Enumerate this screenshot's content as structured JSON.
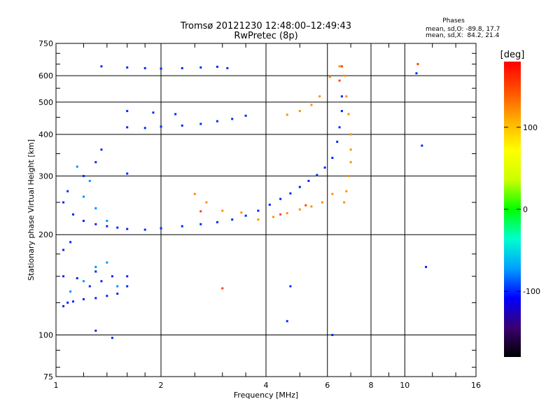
{
  "header": {
    "title_line1": "Tromsø 20121230 12:48:00–12:49:43",
    "title_line2": "RwPretec (8p)",
    "stats_title": "Phases",
    "stats_line1": "mean, sd,O: -89.8, 17.7",
    "stats_line2": "mean, sd,X:  84.2, 21.4"
  },
  "colorbar": {
    "unit_label": "[deg]",
    "tick_labels": [
      "100",
      "0",
      "-100"
    ],
    "tick_values": [
      100,
      0,
      -100
    ],
    "range": [
      -180,
      180
    ],
    "colors": [
      "#000000",
      "#3a0070",
      "#0000ff",
      "#00a0ff",
      "#00ffcc",
      "#00ff00",
      "#ccff00",
      "#ffff00",
      "#ffb000",
      "#ff5000",
      "#ff0000"
    ]
  },
  "chart_data": {
    "type": "scatter",
    "title": "Tromsø 20121230 12:48:00–12:49:43",
    "subtitle": "RwPretec (8p)",
    "xlabel": "Frequency [MHz]",
    "ylabel": "Stationary phase Virtual Height [km]",
    "x_scale": "log",
    "y_scale": "log",
    "xlim": [
      1,
      16
    ],
    "ylim": [
      75,
      750
    ],
    "x_ticks": [
      1,
      2,
      4,
      6,
      8,
      10,
      16
    ],
    "x_tick_labels": [
      "1",
      "2",
      "4",
      "6",
      "8",
      "10",
      "16"
    ],
    "y_ticks": [
      75,
      100,
      200,
      300,
      400,
      500,
      600,
      750
    ],
    "y_tick_labels": [
      "75",
      "100",
      "200",
      "300",
      "400",
      "500",
      "600",
      "750"
    ],
    "grid": true,
    "color_encoding": "phase [deg]",
    "series": [
      {
        "phase": -100,
        "points": [
          [
            1.05,
            122
          ],
          [
            1.08,
            125
          ],
          [
            1.12,
            126
          ],
          [
            1.2,
            128
          ],
          [
            1.3,
            129
          ],
          [
            1.4,
            131
          ],
          [
            1.5,
            133
          ],
          [
            1.05,
            150
          ],
          [
            1.15,
            148
          ],
          [
            1.25,
            140
          ],
          [
            1.35,
            145
          ],
          [
            1.05,
            180
          ],
          [
            1.1,
            190
          ],
          [
            1.3,
            155
          ],
          [
            1.45,
            150
          ],
          [
            1.6,
            140
          ],
          [
            1.6,
            150
          ],
          [
            1.05,
            250
          ],
          [
            1.08,
            270
          ],
          [
            1.12,
            230
          ],
          [
            1.2,
            220
          ],
          [
            1.3,
            215
          ],
          [
            1.4,
            212
          ],
          [
            1.5,
            210
          ],
          [
            1.6,
            208
          ],
          [
            1.8,
            207
          ],
          [
            2.0,
            209
          ],
          [
            2.3,
            212
          ],
          [
            2.6,
            215
          ],
          [
            2.9,
            218
          ],
          [
            3.2,
            222
          ],
          [
            3.5,
            228
          ],
          [
            3.8,
            236
          ],
          [
            4.1,
            246
          ],
          [
            4.4,
            256
          ],
          [
            4.7,
            266
          ],
          [
            5.0,
            278
          ],
          [
            5.3,
            290
          ],
          [
            5.6,
            302
          ],
          [
            5.9,
            318
          ],
          [
            6.2,
            340
          ],
          [
            6.4,
            380
          ],
          [
            6.5,
            420
          ],
          [
            6.6,
            470
          ],
          [
            6.6,
            520
          ],
          [
            1.2,
            300
          ],
          [
            1.3,
            330
          ],
          [
            1.35,
            360
          ],
          [
            1.6,
            305
          ],
          [
            1.6,
            420
          ],
          [
            1.8,
            418
          ],
          [
            2.0,
            422
          ],
          [
            2.3,
            425
          ],
          [
            2.6,
            430
          ],
          [
            2.9,
            438
          ],
          [
            3.2,
            445
          ],
          [
            3.5,
            455
          ],
          [
            1.6,
            470
          ],
          [
            1.9,
            465
          ],
          [
            2.2,
            460
          ],
          [
            1.6,
            635
          ],
          [
            1.8,
            632
          ],
          [
            2.0,
            630
          ],
          [
            2.3,
            632
          ],
          [
            2.6,
            635
          ],
          [
            2.9,
            638
          ],
          [
            3.1,
            632
          ],
          [
            1.35,
            640
          ],
          [
            6.2,
            100
          ],
          [
            4.6,
            110
          ],
          [
            4.7,
            140
          ],
          [
            11.5,
            160
          ],
          [
            10.8,
            610
          ],
          [
            11.2,
            370
          ],
          [
            1.3,
            103
          ],
          [
            1.45,
            98
          ]
        ]
      },
      {
        "phase": -75,
        "points": [
          [
            1.1,
            135
          ],
          [
            1.2,
            145
          ],
          [
            1.3,
            160
          ],
          [
            1.4,
            165
          ],
          [
            1.5,
            140
          ],
          [
            1.2,
            260
          ],
          [
            1.3,
            240
          ],
          [
            1.4,
            220
          ],
          [
            1.15,
            320
          ],
          [
            1.25,
            290
          ]
        ]
      },
      {
        "phase": 120,
        "points": [
          [
            6.7,
            250
          ],
          [
            6.8,
            270
          ],
          [
            6.9,
            300
          ],
          [
            7.0,
            330
          ],
          [
            7.0,
            360
          ],
          [
            7.0,
            400
          ],
          [
            6.9,
            460
          ],
          [
            6.8,
            520
          ],
          [
            6.7,
            600
          ],
          [
            6.5,
            640
          ],
          [
            6.2,
            265
          ],
          [
            5.8,
            250
          ],
          [
            5.4,
            243
          ],
          [
            5.0,
            238
          ],
          [
            4.6,
            232
          ],
          [
            4.2,
            226
          ],
          [
            3.8,
            222
          ],
          [
            3.4,
            233
          ],
          [
            3.0,
            236
          ],
          [
            2.7,
            250
          ],
          [
            2.5,
            265
          ],
          [
            4.6,
            458
          ],
          [
            5.0,
            470
          ],
          [
            5.4,
            490
          ],
          [
            5.7,
            520
          ],
          [
            6.1,
            595
          ]
        ]
      },
      {
        "phase": 150,
        "points": [
          [
            6.6,
            640
          ],
          [
            6.5,
            580
          ],
          [
            5.2,
            245
          ],
          [
            4.4,
            230
          ],
          [
            2.6,
            235
          ],
          [
            3.0,
            138
          ],
          [
            10.9,
            650
          ]
        ]
      }
    ]
  }
}
